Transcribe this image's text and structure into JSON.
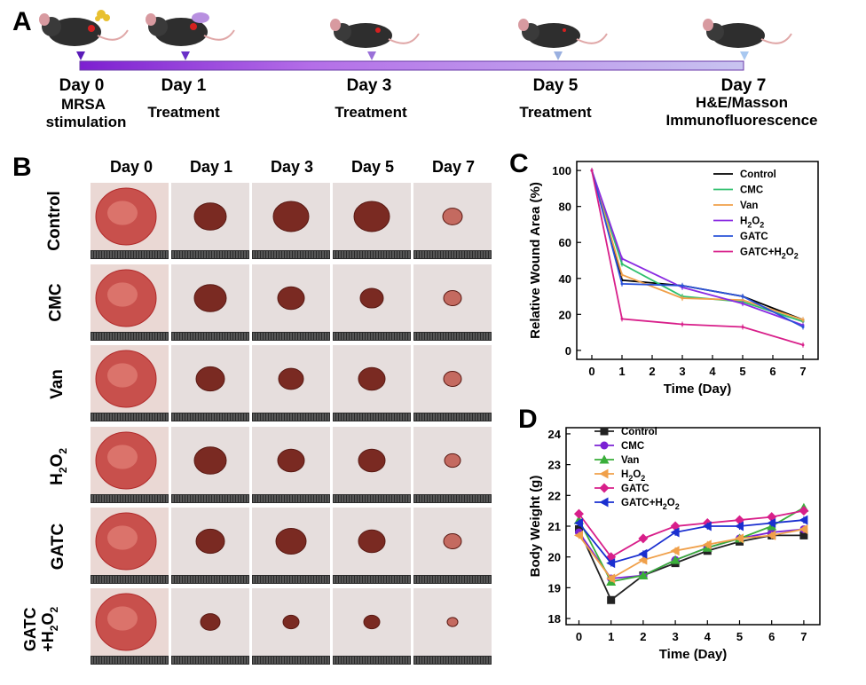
{
  "panel_a": {
    "label": "A",
    "days": [
      {
        "day": "Day 0",
        "sub": [
          "MRSA",
          "stimulation"
        ]
      },
      {
        "day": "Day 1",
        "sub": [
          "Treatment"
        ]
      },
      {
        "day": "Day 3",
        "sub": [
          "Treatment"
        ]
      },
      {
        "day": "Day 5",
        "sub": [
          "Treatment"
        ]
      },
      {
        "day": "Day 7",
        "sub": [
          "H&E/Masson",
          "Immunofluorescence"
        ]
      }
    ],
    "bar_colors": [
      "#7d1fd0",
      "#c8c4f0"
    ]
  },
  "panel_b": {
    "label": "B",
    "columns": [
      "Day 0",
      "Day 1",
      "Day 3",
      "Day 5",
      "Day 7"
    ],
    "rows": [
      "Control",
      "CMC",
      "Van",
      "H2O2",
      "GATC",
      "GATC+H2O2"
    ]
  },
  "chart_data": [
    {
      "type": "line",
      "panel": "C",
      "xlabel": "Time (Day)",
      "ylabel": "Relative Wound Area (%)",
      "x": [
        0,
        1,
        3,
        5,
        7
      ],
      "xlim": [
        -0.5,
        7.5
      ],
      "ylim": [
        -5,
        105
      ],
      "xticks": [
        0,
        1,
        2,
        3,
        4,
        5,
        6,
        7
      ],
      "yticks": [
        0,
        20,
        40,
        60,
        80,
        100
      ],
      "legend_position": "top-right",
      "series": [
        {
          "name": "Control",
          "color": "#000000",
          "values": [
            100,
            39,
            36,
            30,
            17
          ]
        },
        {
          "name": "CMC",
          "color": "#2fbf6e",
          "values": [
            100,
            48,
            30,
            27,
            16
          ]
        },
        {
          "name": "Van",
          "color": "#f0a04a",
          "values": [
            100,
            42,
            29,
            28,
            17
          ]
        },
        {
          "name": "H2O2",
          "color": "#8a2be2",
          "values": [
            100,
            51,
            35,
            26,
            14
          ]
        },
        {
          "name": "GATC",
          "color": "#2a52d8",
          "values": [
            100,
            37,
            36,
            30,
            13
          ]
        },
        {
          "name": "GATC+H2O2",
          "color": "#d81f8a",
          "values": [
            100,
            17.5,
            14.5,
            13,
            3
          ]
        }
      ]
    },
    {
      "type": "line",
      "panel": "D",
      "xlabel": "Time (Day)",
      "ylabel": "Body Weight (g)",
      "x": [
        0,
        1,
        2,
        3,
        4,
        5,
        6,
        7
      ],
      "xlim": [
        -0.4,
        7.5
      ],
      "ylim": [
        17.8,
        24.2
      ],
      "xticks": [
        0,
        1,
        2,
        3,
        4,
        5,
        6,
        7
      ],
      "yticks": [
        18,
        19,
        20,
        21,
        22,
        23,
        24
      ],
      "legend_position": "top-left",
      "series": [
        {
          "name": "Control",
          "color": "#222222",
          "marker": "square",
          "values": [
            20.9,
            18.6,
            19.4,
            19.8,
            20.2,
            20.5,
            20.7,
            20.7
          ]
        },
        {
          "name": "CMC",
          "color": "#7b22d4",
          "marker": "circle",
          "values": [
            20.8,
            19.3,
            19.4,
            19.9,
            20.3,
            20.6,
            20.8,
            20.9
          ]
        },
        {
          "name": "Van",
          "color": "#3aae3a",
          "marker": "triangle-up",
          "values": [
            21.2,
            19.2,
            19.4,
            19.9,
            20.3,
            20.6,
            21.0,
            21.6
          ]
        },
        {
          "name": "H2O2",
          "color": "#f0a04a",
          "marker": "triangle-left",
          "values": [
            20.7,
            19.3,
            19.9,
            20.2,
            20.4,
            20.6,
            20.7,
            20.9
          ]
        },
        {
          "name": "GATC",
          "color": "#d81f8a",
          "marker": "diamond",
          "values": [
            21.4,
            20.0,
            20.6,
            21.0,
            21.1,
            21.2,
            21.3,
            21.5
          ]
        },
        {
          "name": "GATC+H2O2",
          "color": "#1a2fd0",
          "marker": "triangle-left",
          "values": [
            21.1,
            19.8,
            20.1,
            20.8,
            21.0,
            21.0,
            21.1,
            21.2
          ]
        }
      ]
    }
  ]
}
